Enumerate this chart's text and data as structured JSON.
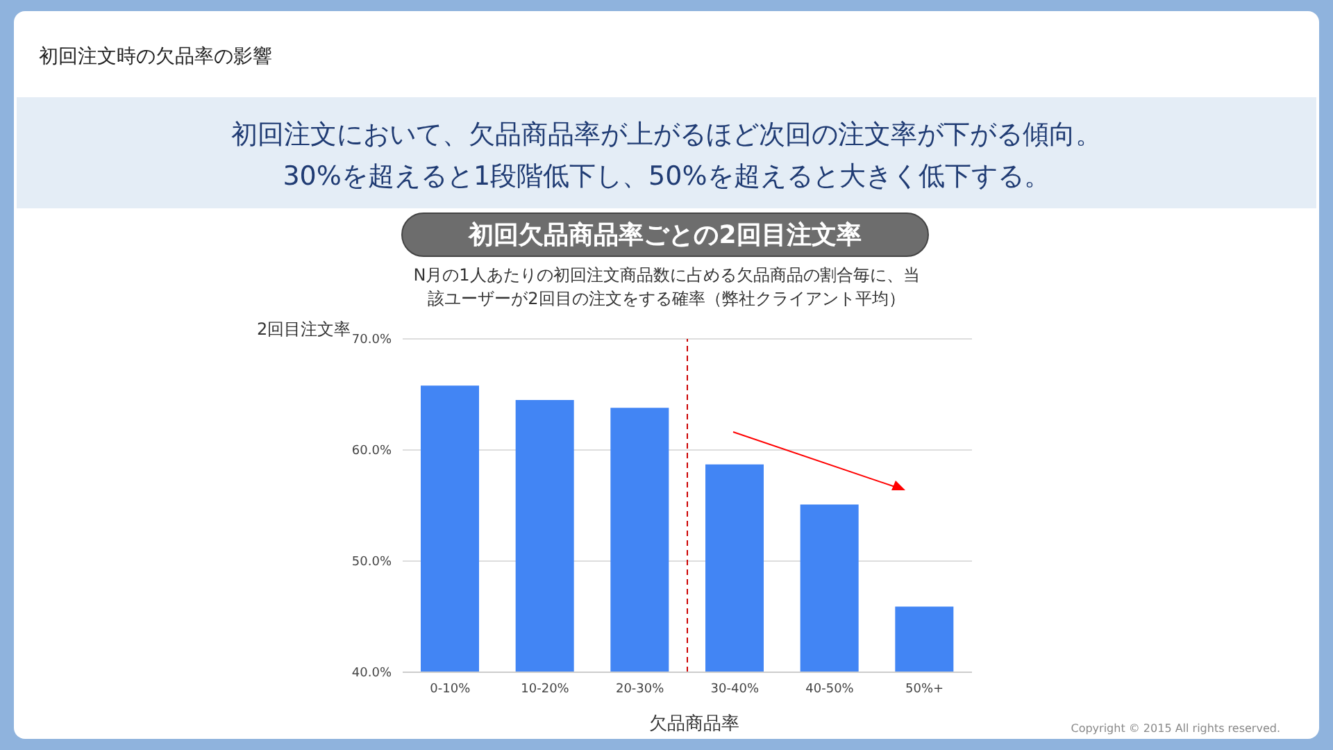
{
  "chart_data": {
    "type": "bar",
    "title": "初回欠品商品率ごとの2回目注文率",
    "subtitle": "N月の1人あたりの初回注文商品数に占める欠品商品の割合毎に、当該ユーザーが2回目の注文をする確率（弊社クライアント平均）",
    "xlabel": "欠品商品率",
    "ylabel": "2回目注文率",
    "annotations": [
      "初回注文時の欠品率の影響",
      "初回注文において、欠品商品率が上がるほど次回の注文率が下がる傾向。",
      "30%を超えると1段階低下し、50%を超えると大きく低下する。",
      "Copyright © 2015 All rights reserved."
    ],
    "categories": [
      "0-10%",
      "10-20%",
      "20-30%",
      "30-40%",
      "40-50%",
      "50%+"
    ],
    "values": [
      65.8,
      64.5,
      63.8,
      58.7,
      55.1,
      45.9
    ],
    "color": "#4285f4",
    "ylim": [
      40,
      70
    ],
    "yticks": [
      {
        "value": 40,
        "label": "40.0%"
      },
      {
        "value": 50,
        "label": "50.0%"
      },
      {
        "value": 60,
        "label": "60.0%"
      },
      {
        "value": 70,
        "label": "70.0%"
      }
    ],
    "grid": "y",
    "ref_lines": [
      {
        "axis": "x",
        "value": "30-40%",
        "color": "#cc0000",
        "line_style": "dashed"
      }
    ]
  }
}
